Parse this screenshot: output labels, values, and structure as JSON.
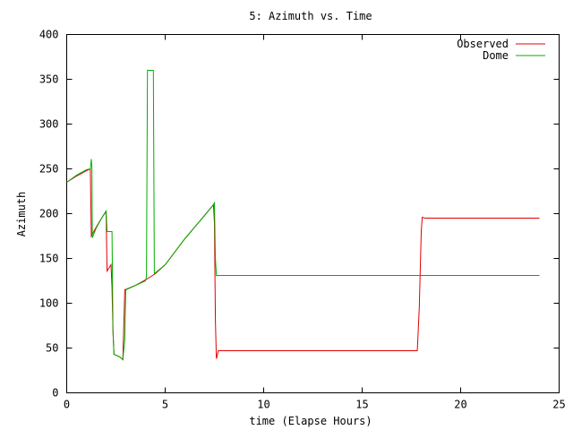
{
  "chart_data": {
    "type": "line",
    "title": "5: Azimuth vs. Time",
    "xlabel": "time (Elapse Hours)",
    "ylabel": "Azimuth",
    "xlim": [
      0,
      25
    ],
    "ylim": [
      0,
      400
    ],
    "xticks": [
      0,
      5,
      10,
      15,
      20,
      25
    ],
    "yticks": [
      0,
      50,
      100,
      150,
      200,
      250,
      300,
      350,
      400
    ],
    "grid": false,
    "legend_position": "top-right",
    "series": [
      {
        "name": "Observed",
        "color": "#e00000",
        "points": [
          [
            0.0,
            235
          ],
          [
            0.5,
            242
          ],
          [
            1.0,
            248
          ],
          [
            1.2,
            250
          ],
          [
            1.25,
            175
          ],
          [
            1.5,
            185
          ],
          [
            1.8,
            196
          ],
          [
            2.0,
            202
          ],
          [
            2.05,
            136
          ],
          [
            2.25,
            143
          ],
          [
            2.3,
            118
          ],
          [
            2.35,
            68
          ],
          [
            2.4,
            43
          ],
          [
            2.7,
            40
          ],
          [
            2.85,
            37
          ],
          [
            2.95,
            115
          ],
          [
            3.5,
            120
          ],
          [
            4.0,
            126
          ],
          [
            4.5,
            133
          ],
          [
            5.0,
            143
          ],
          [
            6.0,
            172
          ],
          [
            7.0,
            198
          ],
          [
            7.45,
            210
          ],
          [
            7.5,
            190
          ],
          [
            7.55,
            80
          ],
          [
            7.6,
            38
          ],
          [
            7.7,
            47
          ],
          [
            8.0,
            47
          ],
          [
            12.0,
            47
          ],
          [
            17.8,
            47
          ],
          [
            17.9,
            95
          ],
          [
            18.0,
            180
          ],
          [
            18.05,
            196
          ],
          [
            18.2,
            195
          ],
          [
            21.0,
            195
          ],
          [
            24.0,
            195
          ]
        ]
      },
      {
        "name": "Dome",
        "color": "#00b000",
        "points": [
          [
            0.0,
            235
          ],
          [
            0.5,
            243
          ],
          [
            1.0,
            249
          ],
          [
            1.2,
            250
          ],
          [
            1.25,
            261
          ],
          [
            1.28,
            250
          ],
          [
            1.3,
            173
          ],
          [
            1.5,
            184
          ],
          [
            1.8,
            196
          ],
          [
            2.0,
            203
          ],
          [
            2.05,
            180
          ],
          [
            2.3,
            180
          ],
          [
            2.35,
            70
          ],
          [
            2.4,
            43
          ],
          [
            2.7,
            40
          ],
          [
            2.85,
            37
          ],
          [
            2.95,
            60
          ],
          [
            3.0,
            115
          ],
          [
            3.5,
            120
          ],
          [
            4.0,
            125
          ],
          [
            4.05,
            130
          ],
          [
            4.1,
            360
          ],
          [
            4.4,
            360
          ],
          [
            4.45,
            133
          ],
          [
            5.0,
            143
          ],
          [
            6.0,
            172
          ],
          [
            7.0,
            198
          ],
          [
            7.45,
            210
          ],
          [
            7.5,
            212
          ],
          [
            7.55,
            150
          ],
          [
            7.6,
            131
          ],
          [
            10.0,
            131
          ],
          [
            15.0,
            131
          ],
          [
            20.0,
            131
          ],
          [
            24.0,
            131
          ]
        ]
      }
    ]
  }
}
